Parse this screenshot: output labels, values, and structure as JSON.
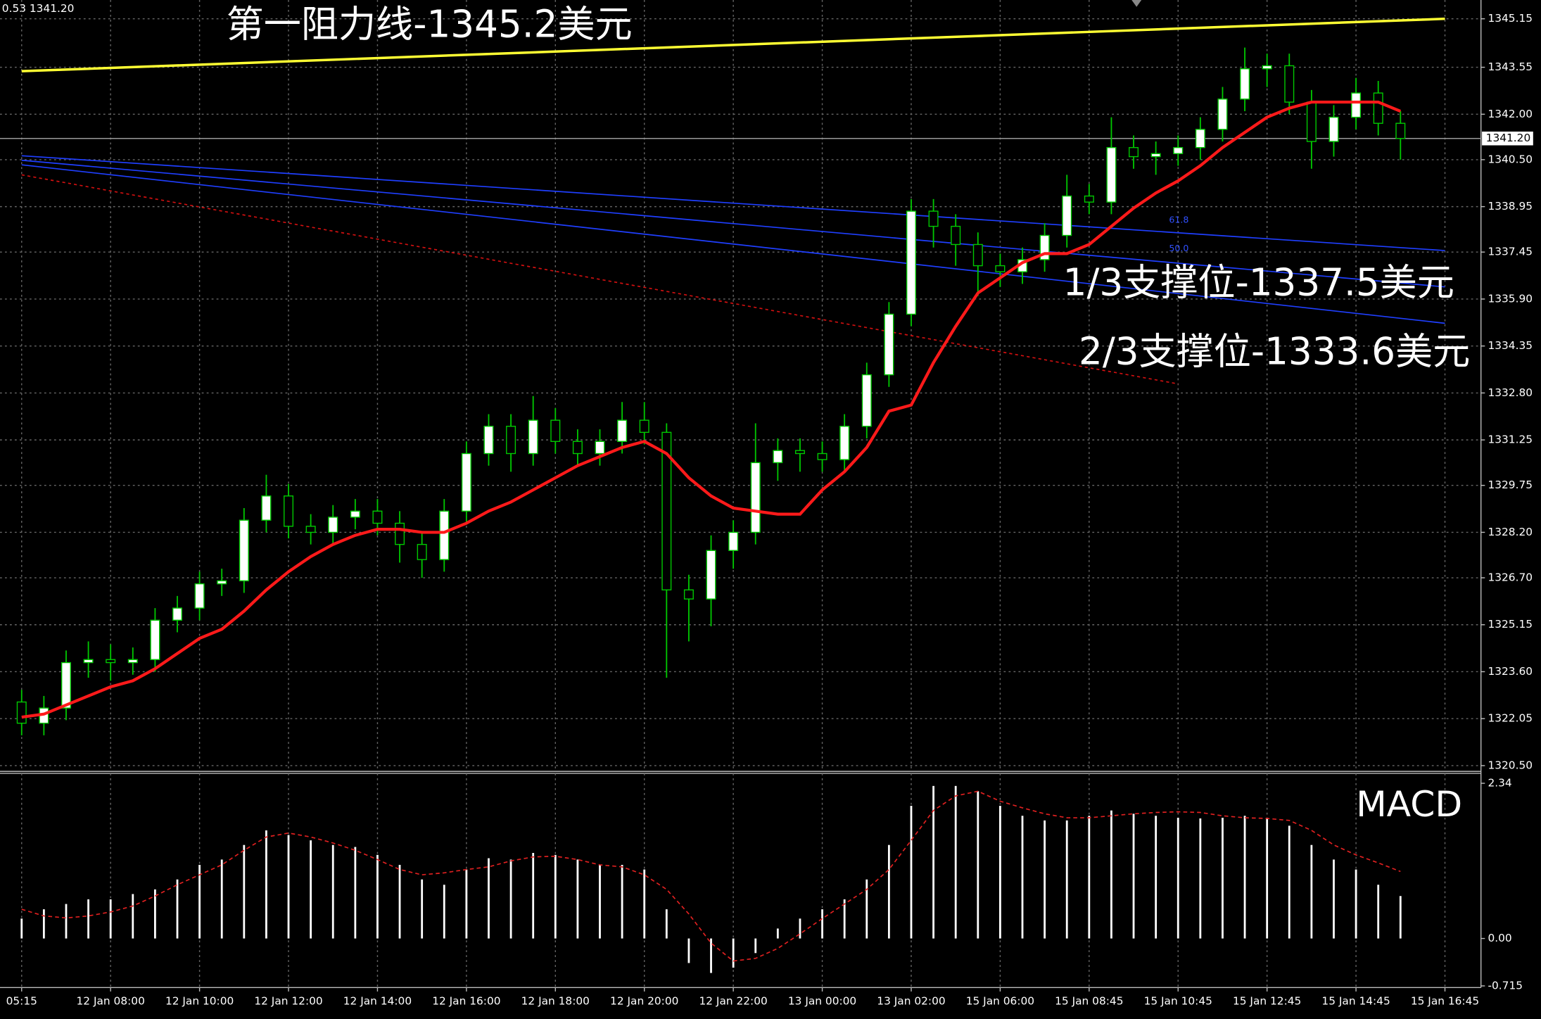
{
  "chart_data": {
    "type": "candlestick",
    "info": "0.53 1341.20",
    "categories": [
      "05:15",
      null,
      null,
      null,
      "12 Jan 08:00",
      null,
      null,
      null,
      "12 Jan 10:00",
      null,
      null,
      null,
      "12 Jan 12:00",
      null,
      null,
      null,
      "12 Jan 14:00",
      null,
      null,
      null,
      "12 Jan 16:00",
      null,
      null,
      null,
      "12 Jan 18:00",
      null,
      null,
      null,
      "12 Jan 20:00",
      null,
      null,
      null,
      "12 Jan 22:00",
      null,
      null,
      null,
      "13 Jan 00:00",
      null,
      null,
      null,
      "13 Jan 02:00",
      null,
      null,
      null,
      "15 Jan 06:00",
      null,
      null,
      null,
      "15 Jan 08:45",
      null,
      null,
      null,
      "15 Jan 10:45",
      null,
      null,
      null,
      "15 Jan 12:45",
      null,
      null,
      null,
      "15 Jan 14:45",
      null,
      null,
      null,
      "15 Jan 16:45"
    ],
    "open": [
      1322.6,
      1321.9,
      1322.4,
      1323.9,
      1324.0,
      1323.9,
      1324.0,
      1325.3,
      1325.7,
      1326.5,
      1326.6,
      1328.6,
      1329.4,
      1328.4,
      1328.2,
      1328.7,
      1328.9,
      1328.5,
      1327.8,
      1327.3,
      1328.9,
      1330.8,
      1331.7,
      1330.8,
      1331.9,
      1331.2,
      1330.8,
      1331.2,
      1331.9,
      1331.5,
      1326.3,
      1326.0,
      1327.6,
      1328.2,
      1330.5,
      1330.9,
      1330.8,
      1330.6,
      1331.7,
      1333.4,
      1335.4,
      1338.8,
      1338.3,
      1337.7,
      1337.0,
      1336.8,
      1337.2,
      1338.0,
      1339.3,
      1339.1,
      1340.9,
      1340.6,
      1340.7,
      1340.9,
      1341.5,
      1342.5,
      1343.5,
      1343.6,
      1342.4,
      1341.1,
      1341.9,
      1342.7,
      1341.7,
      null,
      null
    ],
    "high": [
      1323.0,
      1322.8,
      1324.3,
      1324.6,
      1324.5,
      1324.4,
      1325.7,
      1326.1,
      1326.9,
      1327.0,
      1329.0,
      1330.1,
      1329.8,
      1328.8,
      1329.1,
      1329.3,
      1329.3,
      1328.9,
      1328.2,
      1329.3,
      1331.2,
      1332.1,
      1332.1,
      1332.7,
      1332.3,
      1331.6,
      1331.6,
      1332.5,
      1332.5,
      1331.8,
      1326.8,
      1328.1,
      1328.6,
      1331.8,
      1331.3,
      1331.3,
      1331.2,
      1332.1,
      1333.8,
      1335.8,
      1339.2,
      1339.2,
      1338.7,
      1338.1,
      1337.4,
      1337.6,
      1338.4,
      1340.0,
      1339.7,
      1341.9,
      1341.3,
      1341.1,
      1341.3,
      1341.9,
      1342.9,
      1344.2,
      1344.0,
      1344.0,
      1342.8,
      1342.3,
      1343.2,
      1343.1,
      1342.1,
      null,
      null
    ],
    "low": [
      1321.5,
      1321.5,
      1322.0,
      1323.4,
      1323.3,
      1323.5,
      1323.6,
      1324.9,
      1325.3,
      1326.1,
      1326.2,
      1328.2,
      1328.0,
      1327.8,
      1327.8,
      1328.3,
      1328.1,
      1327.2,
      1326.7,
      1326.9,
      1328.5,
      1330.4,
      1330.2,
      1330.4,
      1330.8,
      1330.4,
      1330.4,
      1330.8,
      1331.1,
      1323.4,
      1324.6,
      1325.1,
      1327.0,
      1327.8,
      1329.9,
      1330.2,
      1330.2,
      1330.2,
      1331.3,
      1333.0,
      1335.0,
      1337.6,
      1337.0,
      1336.0,
      1336.3,
      1336.4,
      1336.8,
      1337.6,
      1338.7,
      1338.7,
      1340.2,
      1340.0,
      1340.3,
      1340.5,
      1341.1,
      1342.1,
      1342.9,
      1342.0,
      1340.2,
      1340.6,
      1341.5,
      1341.3,
      1340.5,
      null,
      null
    ],
    "close": [
      1321.9,
      1322.4,
      1323.9,
      1324.0,
      1323.9,
      1324.0,
      1325.3,
      1325.7,
      1326.5,
      1326.6,
      1328.6,
      1329.4,
      1328.4,
      1328.2,
      1328.7,
      1328.9,
      1328.5,
      1327.8,
      1327.3,
      1328.9,
      1330.8,
      1331.7,
      1330.8,
      1331.9,
      1331.2,
      1330.8,
      1331.2,
      1331.9,
      1331.5,
      1326.3,
      1326.0,
      1327.6,
      1328.2,
      1330.5,
      1330.9,
      1330.8,
      1330.6,
      1331.7,
      1333.4,
      1335.4,
      1338.8,
      1338.3,
      1337.7,
      1337.0,
      1336.8,
      1337.2,
      1338.0,
      1339.3,
      1339.1,
      1340.9,
      1340.6,
      1340.7,
      1340.9,
      1341.5,
      1342.5,
      1343.5,
      1343.6,
      1342.4,
      1341.1,
      1341.9,
      1342.7,
      1341.7,
      1341.2,
      null,
      null
    ],
    "up_color": "#ffffff",
    "down_color": "#000000",
    "wick_color": "#00c800",
    "ma": {
      "color": "#ff1a1a",
      "values": [
        1322.1,
        1322.2,
        1322.5,
        1322.8,
        1323.1,
        1323.3,
        1323.7,
        1324.2,
        1324.7,
        1325.0,
        1325.6,
        1326.3,
        1326.9,
        1327.4,
        1327.8,
        1328.1,
        1328.3,
        1328.3,
        1328.2,
        1328.2,
        1328.5,
        1328.9,
        1329.2,
        1329.6,
        1330.0,
        1330.4,
        1330.7,
        1331.0,
        1331.2,
        1330.8,
        1330.0,
        1329.4,
        1329.0,
        1328.9,
        1328.8,
        1328.8,
        1329.6,
        1330.2,
        1331.0,
        1332.2,
        1332.4,
        1333.8,
        1335.0,
        1336.1,
        1336.6,
        1337.1,
        1337.4,
        1337.4,
        1337.7,
        1338.3,
        1338.9,
        1339.4,
        1339.8,
        1340.3,
        1340.9,
        1341.4,
        1341.9,
        1342.2,
        1342.4,
        1342.4,
        1342.4,
        1342.4,
        1342.1,
        null,
        null
      ]
    },
    "trendlines": [
      {
        "color": "#ffff33",
        "x": [
          0,
          64
        ],
        "values": [
          1343.42,
          1345.15
        ]
      },
      {
        "color": "#1f3fff",
        "x": [
          0,
          64
        ],
        "values": [
          1340.63,
          1337.5
        ]
      },
      {
        "color": "#1f3fff",
        "x": [
          0,
          64
        ],
        "values": [
          1340.48,
          1336.3
        ]
      },
      {
        "color": "#1f3fff",
        "x": [
          0,
          64
        ],
        "values": [
          1340.33,
          1335.1
        ]
      },
      {
        "color": "#d01010",
        "x": [
          0,
          52
        ],
        "values": [
          1340.0,
          1333.1
        ],
        "dash": true
      }
    ],
    "annotations": [
      "第一阻力线-1345.2美元",
      "1/3支撑位-1337.5美元",
      "2/3支撑位-1333.6美元",
      "61.8",
      "50.0"
    ],
    "current_price": {
      "value": 1341.2,
      "label": "1341.20"
    },
    "ylim": [
      1320.31,
      1345.77
    ],
    "yticks": [
      1345.15,
      1343.55,
      {
        "value": 1342.0,
        "label": "1342.00"
      },
      {
        "value": 1340.5,
        "label": "1340.50"
      },
      1338.95,
      1337.45,
      {
        "value": 1335.9,
        "label": "1335.90"
      },
      1334.35,
      {
        "value": 1332.8,
        "label": "1332.80"
      },
      1331.25,
      1329.75,
      {
        "value": 1328.2,
        "label": "1328.20"
      },
      {
        "value": 1326.7,
        "label": "1326.70"
      },
      1325.15,
      {
        "value": 1323.6,
        "label": "1323.60"
      },
      1322.05,
      {
        "value": 1320.5,
        "label": "1320.50"
      }
    ],
    "grid": true,
    "macd": {
      "title": "MACD",
      "histogram": [
        0.3,
        0.44,
        0.52,
        0.59,
        0.59,
        0.67,
        0.74,
        0.89,
        1.11,
        1.19,
        1.41,
        1.63,
        1.56,
        1.48,
        1.41,
        1.38,
        1.26,
        1.11,
        0.89,
        0.81,
        1.04,
        1.21,
        1.19,
        1.29,
        1.26,
        1.19,
        1.11,
        1.11,
        1.04,
        0.44,
        -0.37,
        -0.52,
        -0.44,
        -0.22,
        0.15,
        0.3,
        0.44,
        0.59,
        0.89,
        1.41,
        2.0,
        2.3,
        2.3,
        2.22,
        2.0,
        1.85,
        1.78,
        1.78,
        1.85,
        1.93,
        1.88,
        1.85,
        1.82,
        1.81,
        1.82,
        1.85,
        1.82,
        1.7,
        1.41,
        1.19,
        1.04,
        0.81,
        0.64,
        null,
        null
      ],
      "signal": [
        0.44,
        0.34,
        0.31,
        0.34,
        0.4,
        0.49,
        0.64,
        0.81,
        0.96,
        1.11,
        1.33,
        1.53,
        1.59,
        1.53,
        1.44,
        1.33,
        1.19,
        1.04,
        0.96,
        0.99,
        1.04,
        1.08,
        1.17,
        1.23,
        1.24,
        1.19,
        1.11,
        1.08,
        0.96,
        0.74,
        0.37,
        -0.07,
        -0.34,
        -0.3,
        -0.15,
        0.07,
        0.3,
        0.52,
        0.74,
        1.04,
        1.48,
        1.93,
        2.15,
        2.22,
        2.07,
        1.97,
        1.88,
        1.82,
        1.82,
        1.85,
        1.88,
        1.9,
        1.91,
        1.9,
        1.85,
        1.82,
        1.81,
        1.78,
        1.63,
        1.41,
        1.26,
        1.14,
        1.01,
        null,
        null
      ],
      "histogram_color": "#ffffff",
      "signal_color": "#e02020",
      "ylim": [
        -0.74,
        2.49
      ],
      "yticks": [
        2.34,
        {
          "value": 0,
          "label": "0.00"
        },
        -0.715
      ]
    }
  }
}
